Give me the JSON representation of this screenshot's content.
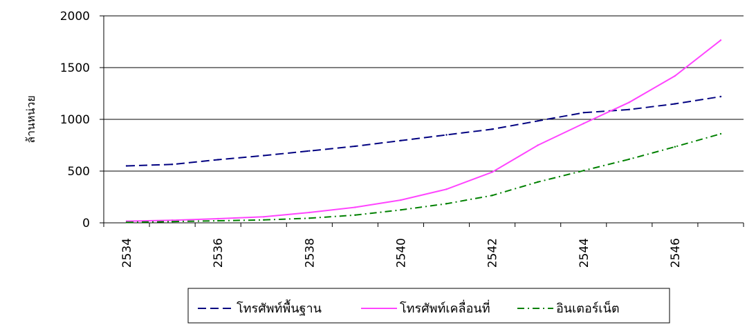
{
  "chart_data": {
    "type": "line",
    "x": [
      2534,
      2535,
      2536,
      2537,
      2538,
      2539,
      2540,
      2541,
      2542,
      2543,
      2544,
      2545,
      2546,
      2547
    ],
    "x_tick_labels": [
      "2534",
      "2536",
      "2538",
      "2540",
      "2542",
      "2544",
      "2546"
    ],
    "x_tick_values": [
      2534,
      2536,
      2538,
      2540,
      2542,
      2544,
      2546
    ],
    "ylabel": "ล้านหน่วย",
    "xlabel": "",
    "title": "",
    "ylim": [
      0,
      2000
    ],
    "y_tick_values": [
      0,
      500,
      1000,
      1500,
      2000
    ],
    "y_tick_labels": [
      "0",
      "500",
      "1000",
      "1500",
      "2000"
    ],
    "grid": "horizontal",
    "legend_position": "bottom",
    "series": [
      {
        "name": "โทรศัพท์พื้นฐาน",
        "color": "#000080",
        "style": "dashed",
        "values": [
          550,
          565,
          610,
          650,
          695,
          740,
          795,
          850,
          905,
          985,
          1065,
          1095,
          1150,
          1220
        ]
      },
      {
        "name": "โทรศัพท์เคลื่อนที่",
        "color": "#ff44ff",
        "style": "solid",
        "values": [
          16,
          25,
          40,
          58,
          100,
          150,
          220,
          325,
          490,
          750,
          960,
          1165,
          1420,
          1765
        ]
      },
      {
        "name": "อินเตอร์เน็ต",
        "color": "#008000",
        "style": "dashdot",
        "values": [
          5,
          12,
          20,
          28,
          45,
          75,
          125,
          185,
          265,
          395,
          505,
          615,
          735,
          860
        ]
      }
    ]
  }
}
